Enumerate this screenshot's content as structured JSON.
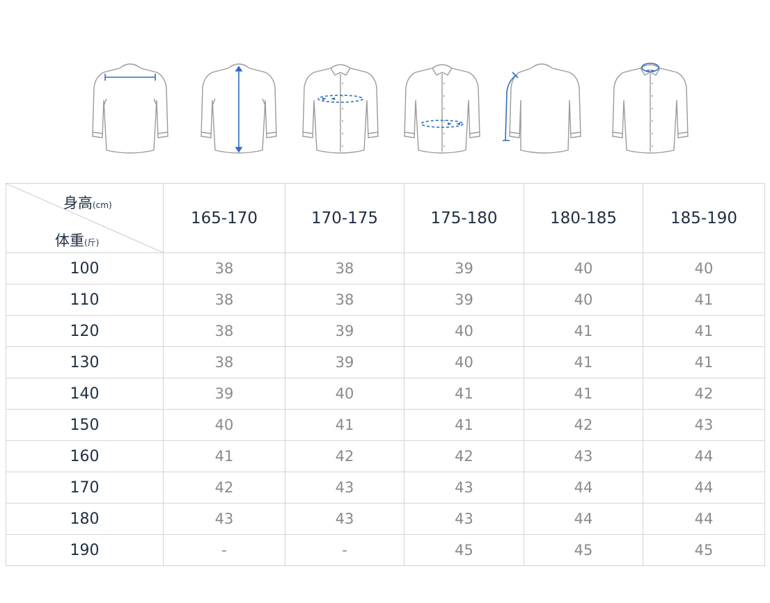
{
  "figures": [
    {
      "name": "shoulder-width-figure"
    },
    {
      "name": "shirt-length-figure"
    },
    {
      "name": "chest-figure"
    },
    {
      "name": "waist-figure"
    },
    {
      "name": "sleeve-length-figure"
    },
    {
      "name": "collar-figure"
    }
  ],
  "colors": {
    "accent": "#2f6fc4",
    "outline": "#9a9a9a",
    "header_text": "#1f2f44",
    "cell_text": "#8a8a8a",
    "border": "#d4d4d4"
  },
  "table": {
    "height_label": "身高",
    "height_unit": "(cm)",
    "weight_label": "体重",
    "weight_unit": "(斤)",
    "height_ranges": [
      "165-170",
      "170-175",
      "175-180",
      "180-185",
      "185-190"
    ],
    "rows": [
      {
        "weight": "100",
        "sizes": [
          "38",
          "38",
          "39",
          "40",
          "40"
        ]
      },
      {
        "weight": "110",
        "sizes": [
          "38",
          "38",
          "39",
          "40",
          "41"
        ]
      },
      {
        "weight": "120",
        "sizes": [
          "38",
          "39",
          "40",
          "41",
          "41"
        ]
      },
      {
        "weight": "130",
        "sizes": [
          "38",
          "39",
          "40",
          "41",
          "41"
        ]
      },
      {
        "weight": "140",
        "sizes": [
          "39",
          "40",
          "41",
          "41",
          "42"
        ]
      },
      {
        "weight": "150",
        "sizes": [
          "40",
          "41",
          "41",
          "42",
          "43"
        ]
      },
      {
        "weight": "160",
        "sizes": [
          "41",
          "42",
          "42",
          "43",
          "44"
        ]
      },
      {
        "weight": "170",
        "sizes": [
          "42",
          "43",
          "43",
          "44",
          "44"
        ]
      },
      {
        "weight": "180",
        "sizes": [
          "43",
          "43",
          "43",
          "44",
          "44"
        ]
      },
      {
        "weight": "190",
        "sizes": [
          "-",
          "-",
          "45",
          "45",
          "45"
        ]
      }
    ]
  }
}
